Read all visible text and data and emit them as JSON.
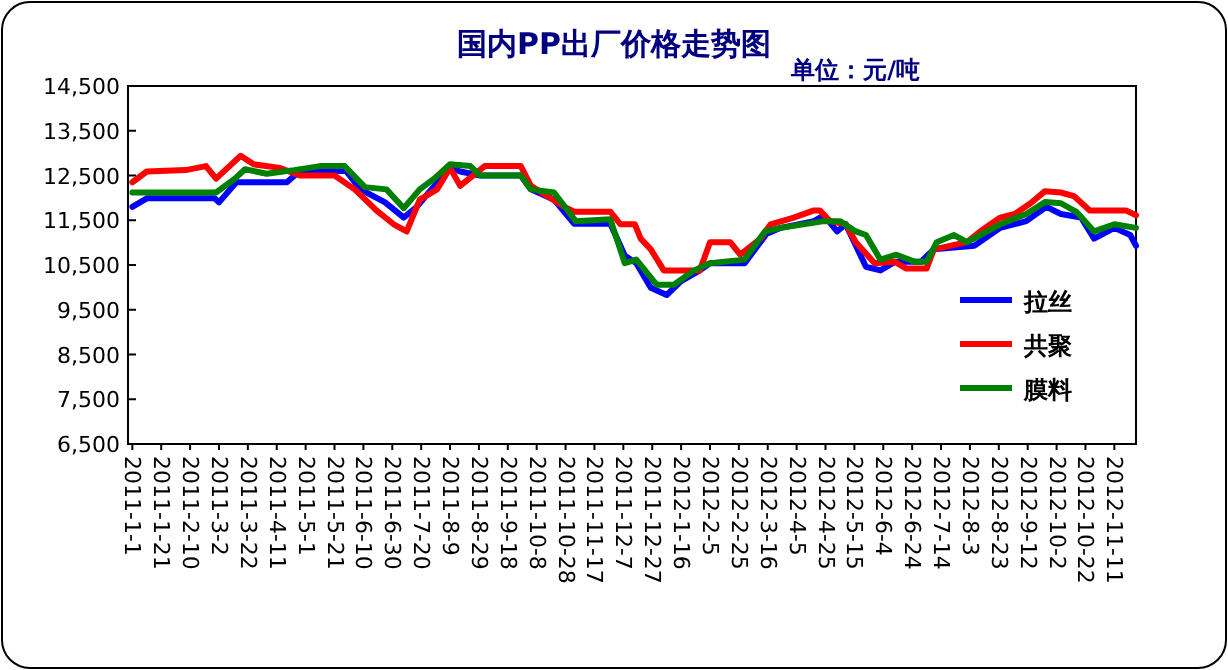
{
  "chart_data": {
    "type": "line",
    "title": "国内PP出厂价格走势图",
    "annotations": [
      "单位：元/吨"
    ],
    "xlim": [
      "2010-12-29",
      "2012-11-26"
    ],
    "xticks": [
      {
        "value": "2011-01-01",
        "label": "2011-1-1"
      },
      {
        "value": "2011-01-21",
        "label": "2011-1-21"
      },
      {
        "value": "2011-02-10",
        "label": "2011-2-10"
      },
      {
        "value": "2011-03-02",
        "label": "2011-3-2"
      },
      {
        "value": "2011-03-22",
        "label": "2011-3-22"
      },
      {
        "value": "2011-04-11",
        "label": "2011-4-11"
      },
      {
        "value": "2011-05-01",
        "label": "2011-5-1"
      },
      {
        "value": "2011-05-21",
        "label": "2011-5-21"
      },
      {
        "value": "2011-06-10",
        "label": "2011-6-10"
      },
      {
        "value": "2011-06-30",
        "label": "2011-6-30"
      },
      {
        "value": "2011-07-20",
        "label": "2011-7-20"
      },
      {
        "value": "2011-08-09",
        "label": "2011-8-9"
      },
      {
        "value": "2011-08-29",
        "label": "2011-8-29"
      },
      {
        "value": "2011-09-18",
        "label": "2011-9-18"
      },
      {
        "value": "2011-10-08",
        "label": "2011-10-8"
      },
      {
        "value": "2011-10-28",
        "label": "2011-10-28"
      },
      {
        "value": "2011-11-17",
        "label": "2011-11-17"
      },
      {
        "value": "2011-12-07",
        "label": "2011-12-7"
      },
      {
        "value": "2011-12-27",
        "label": "2011-12-27"
      },
      {
        "value": "2012-01-16",
        "label": "2012-1-16"
      },
      {
        "value": "2012-02-05",
        "label": "2012-2-5"
      },
      {
        "value": "2012-02-25",
        "label": "2012-2-25"
      },
      {
        "value": "2012-03-16",
        "label": "2012-3-16"
      },
      {
        "value": "2012-04-05",
        "label": "2012-4-5"
      },
      {
        "value": "2012-04-25",
        "label": "2012-4-25"
      },
      {
        "value": "2012-05-15",
        "label": "2012-5-15"
      },
      {
        "value": "2012-06-04",
        "label": "2012-6-4"
      },
      {
        "value": "2012-06-24",
        "label": "2012-6-24"
      },
      {
        "value": "2012-07-14",
        "label": "2012-7-14"
      },
      {
        "value": "2012-08-03",
        "label": "2012-8-3"
      },
      {
        "value": "2012-08-23",
        "label": "2012-8-23"
      },
      {
        "value": "2012-09-12",
        "label": "2012-9-12"
      },
      {
        "value": "2012-10-02",
        "label": "2012-10-2"
      },
      {
        "value": "2012-10-22",
        "label": "2012-10-22"
      },
      {
        "value": "2012-11-11",
        "label": "2012-11-11"
      }
    ],
    "ylim": [
      6500,
      14500
    ],
    "yticks": [
      {
        "value": 6500,
        "label": "6,500"
      },
      {
        "value": 7500,
        "label": "7,500"
      },
      {
        "value": 8500,
        "label": "8,500"
      },
      {
        "value": 9500,
        "label": "9,500"
      },
      {
        "value": 10500,
        "label": "10,500"
      },
      {
        "value": 11500,
        "label": "11,500"
      },
      {
        "value": 12500,
        "label": "12,500"
      },
      {
        "value": 13500,
        "label": "13,500"
      },
      {
        "value": 14500,
        "label": "14,500"
      }
    ],
    "legend": "bottom right",
    "grid": false,
    "marker": "none",
    "line_style": "solid",
    "series": [
      {
        "name": "拉丝",
        "color": "#0000ff",
        "x": [
          "2011-01-01",
          "2011-01-11",
          "2011-02-27",
          "2011-03-02",
          "2011-03-14",
          "2011-04-18",
          "2011-04-27",
          "2011-05-29",
          "2011-06-08",
          "2011-06-25",
          "2011-07-08",
          "2011-07-17",
          "2011-07-26",
          "2011-08-09",
          "2011-08-16",
          "2011-08-30",
          "2011-09-27",
          "2011-10-04",
          "2011-10-20",
          "2011-11-03",
          "2011-11-28",
          "2011-12-08",
          "2011-12-16",
          "2011-12-26",
          "2012-01-06",
          "2012-01-16",
          "2012-01-29",
          "2012-02-05",
          "2012-02-29",
          "2012-03-15",
          "2012-03-25",
          "2012-04-17",
          "2012-04-24",
          "2012-05-03",
          "2012-05-09",
          "2012-05-23",
          "2012-06-02",
          "2012-06-12",
          "2012-06-30",
          "2012-07-09",
          "2012-08-06",
          "2012-08-24",
          "2012-09-11",
          "2012-09-25",
          "2012-10-05",
          "2012-10-19",
          "2012-10-28",
          "2012-11-11",
          "2012-11-22",
          "2012-11-26"
        ],
        "values": [
          11800,
          11990,
          11990,
          11900,
          12350,
          12350,
          12600,
          12600,
          12190,
          11900,
          11560,
          11800,
          12150,
          12670,
          12590,
          12500,
          12500,
          12190,
          11960,
          11420,
          11420,
          10710,
          10540,
          9990,
          9830,
          10140,
          10380,
          10540,
          10540,
          11190,
          11330,
          11480,
          11610,
          11250,
          11410,
          10460,
          10380,
          10570,
          10570,
          10850,
          10930,
          11330,
          11480,
          11800,
          11640,
          11560,
          11090,
          11330,
          11170,
          10930
        ]
      },
      {
        "name": "共聚",
        "color": "#ff0000",
        "x": [
          "2011-01-01",
          "2011-01-11",
          "2011-02-07",
          "2011-02-21",
          "2011-02-28",
          "2011-03-17",
          "2011-03-26",
          "2011-04-13",
          "2011-04-27",
          "2011-05-21",
          "2011-06-04",
          "2011-06-19",
          "2011-07-01",
          "2011-07-10",
          "2011-07-19",
          "2011-07-31",
          "2011-08-09",
          "2011-08-16",
          "2011-09-02",
          "2011-09-27",
          "2011-10-04",
          "2011-10-27",
          "2011-11-03",
          "2011-11-28",
          "2011-12-05",
          "2011-12-15",
          "2011-12-19",
          "2011-12-26",
          "2012-01-04",
          "2012-01-29",
          "2012-02-05",
          "2012-02-19",
          "2012-02-26",
          "2012-03-11",
          "2012-03-18",
          "2012-04-03",
          "2012-04-17",
          "2012-04-21",
          "2012-04-28",
          "2012-05-09",
          "2012-05-16",
          "2012-05-29",
          "2012-06-12",
          "2012-06-20",
          "2012-07-04",
          "2012-07-09",
          "2012-08-01",
          "2012-08-10",
          "2012-08-24",
          "2012-09-03",
          "2012-09-14",
          "2012-09-24",
          "2012-10-05",
          "2012-10-14",
          "2012-10-25",
          "2012-11-19",
          "2012-11-26"
        ],
        "values": [
          12350,
          12590,
          12620,
          12710,
          12430,
          12940,
          12750,
          12670,
          12500,
          12500,
          12190,
          11720,
          11410,
          11250,
          11960,
          12190,
          12670,
          12270,
          12710,
          12710,
          12270,
          11800,
          11690,
          11690,
          11410,
          11410,
          11090,
          10850,
          10380,
          10380,
          11010,
          11010,
          10730,
          11090,
          11410,
          11560,
          11720,
          11720,
          11480,
          11410,
          11010,
          10540,
          10570,
          10420,
          10420,
          10850,
          11010,
          11250,
          11560,
          11640,
          11880,
          12150,
          12120,
          12040,
          11720,
          11720,
          11610
        ]
      },
      {
        "name": "膜料",
        "color": "#008000",
        "x": [
          "2011-01-01",
          "2011-02-28",
          "2011-03-13",
          "2011-03-20",
          "2011-04-04",
          "2011-04-23",
          "2011-05-11",
          "2011-05-28",
          "2011-06-11",
          "2011-06-26",
          "2011-07-08",
          "2011-07-19",
          "2011-07-29",
          "2011-08-09",
          "2011-08-23",
          "2011-08-30",
          "2011-09-27",
          "2011-10-04",
          "2011-10-20",
          "2011-11-04",
          "2011-11-28",
          "2011-12-08",
          "2011-12-16",
          "2011-12-30",
          "2012-01-11",
          "2012-01-25",
          "2012-02-05",
          "2012-02-29",
          "2012-03-14",
          "2012-03-25",
          "2012-04-24",
          "2012-05-05",
          "2012-05-16",
          "2012-05-23",
          "2012-06-02",
          "2012-06-13",
          "2012-06-26",
          "2012-07-04",
          "2012-07-11",
          "2012-07-23",
          "2012-08-01",
          "2012-08-24",
          "2012-09-11",
          "2012-09-24",
          "2012-10-05",
          "2012-10-16",
          "2012-10-28",
          "2012-11-11",
          "2012-11-26"
        ],
        "values": [
          12120,
          12120,
          12430,
          12640,
          12540,
          12620,
          12710,
          12710,
          12240,
          12190,
          11770,
          12190,
          12430,
          12750,
          12710,
          12500,
          12500,
          12190,
          12120,
          11480,
          11520,
          10540,
          10620,
          10060,
          10060,
          10380,
          10540,
          10620,
          11250,
          11330,
          11480,
          11480,
          11250,
          11170,
          10620,
          10730,
          10570,
          10570,
          11010,
          11170,
          11010,
          11410,
          11640,
          11910,
          11880,
          11680,
          11250,
          11410,
          11330
        ]
      }
    ]
  }
}
